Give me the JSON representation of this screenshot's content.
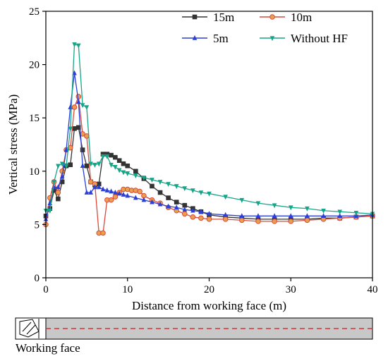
{
  "chart_data": {
    "type": "line",
    "xlabel": "Distance from working face (m)",
    "ylabel": "Vertical stress (MPa)",
    "xlim": [
      0,
      40
    ],
    "ylim": [
      0,
      25
    ],
    "xticks": [
      0,
      10,
      20,
      30,
      40
    ],
    "yticks": [
      0,
      5,
      10,
      15,
      20,
      25
    ],
    "grid": false,
    "legend_position": "top-right",
    "series": [
      {
        "name": "15m",
        "color": "#333333",
        "marker": "square",
        "x": [
          0,
          0.5,
          1,
          1.5,
          2,
          2.5,
          3,
          3.5,
          4,
          4.5,
          5,
          5.5,
          6,
          6.5,
          7,
          7.5,
          8,
          8.5,
          9,
          9.5,
          10,
          11,
          12,
          13,
          14,
          15,
          16,
          17,
          18,
          19,
          20,
          22,
          24,
          26,
          28,
          30,
          32,
          34,
          36,
          38,
          40
        ],
        "y": [
          5.8,
          6.5,
          8.2,
          7.4,
          9.0,
          10.5,
          10.6,
          14.0,
          14.1,
          12.0,
          10.5,
          9.0,
          8.7,
          8.8,
          11.6,
          11.6,
          11.5,
          11.3,
          11.0,
          10.7,
          10.5,
          10.0,
          9.3,
          8.6,
          8.0,
          7.5,
          7.1,
          6.8,
          6.5,
          6.2,
          5.9,
          5.7,
          5.6,
          5.5,
          5.5,
          5.5,
          5.5,
          5.6,
          5.6,
          5.7,
          5.8
        ]
      },
      {
        "name": "10m",
        "color": "#d94a3a",
        "marker": "circle",
        "x": [
          0,
          0.5,
          1,
          1.5,
          2,
          2.5,
          3,
          3.5,
          4,
          4.5,
          5,
          5.5,
          6,
          6.5,
          7,
          7.5,
          8,
          8.5,
          9,
          9.5,
          10,
          10.5,
          11,
          11.5,
          12,
          13,
          14,
          15,
          16,
          17,
          18,
          19,
          20,
          22,
          24,
          26,
          28,
          30,
          32,
          34,
          36,
          38,
          40
        ],
        "y": [
          5.0,
          7.5,
          9.0,
          8.0,
          10.0,
          12.0,
          12.2,
          16.0,
          17.0,
          13.5,
          13.3,
          9.0,
          8.8,
          4.2,
          4.2,
          7.3,
          7.3,
          7.6,
          8.0,
          8.3,
          8.3,
          8.2,
          8.2,
          8.1,
          7.7,
          7.3,
          7.0,
          6.6,
          6.3,
          6.0,
          5.7,
          5.6,
          5.5,
          5.5,
          5.4,
          5.3,
          5.3,
          5.3,
          5.4,
          5.5,
          5.6,
          5.7,
          5.8
        ]
      },
      {
        "name": "5m",
        "color": "#2b3fd6",
        "marker": "triangle-up",
        "x": [
          0,
          0.5,
          1,
          1.5,
          2,
          2.5,
          3,
          3.5,
          4,
          4.5,
          5,
          5.5,
          6,
          6.5,
          7,
          7.5,
          8,
          8.5,
          9,
          9.5,
          10,
          11,
          12,
          13,
          14,
          15,
          16,
          17,
          18,
          19,
          20,
          22,
          24,
          26,
          28,
          30,
          32,
          34,
          36,
          38,
          40
        ],
        "y": [
          5.5,
          7.0,
          8.5,
          8.5,
          9.5,
          12.0,
          16.0,
          19.2,
          16.5,
          10.5,
          8.0,
          8.0,
          8.5,
          8.5,
          8.3,
          8.2,
          8.1,
          8.0,
          7.9,
          7.8,
          7.7,
          7.5,
          7.3,
          7.1,
          6.9,
          6.7,
          6.6,
          6.4,
          6.3,
          6.2,
          6.0,
          5.9,
          5.8,
          5.8,
          5.8,
          5.8,
          5.8,
          5.8,
          5.8,
          5.8,
          5.9
        ]
      },
      {
        "name": "Without HF",
        "color": "#17a589",
        "marker": "triangle-down",
        "x": [
          0,
          0.5,
          1,
          1.5,
          2,
          2.5,
          3,
          3.5,
          4,
          4.5,
          5,
          5.5,
          6,
          6.5,
          7,
          7.5,
          8,
          8.5,
          9,
          9.5,
          10,
          11,
          12,
          13,
          14,
          15,
          16,
          17,
          18,
          19,
          20,
          22,
          24,
          26,
          28,
          30,
          32,
          34,
          36,
          38,
          40
        ],
        "y": [
          6.3,
          6.3,
          9.0,
          10.5,
          10.7,
          10.5,
          14.0,
          21.9,
          21.8,
          16.2,
          16.0,
          10.7,
          10.6,
          10.7,
          11.4,
          11.4,
          10.6,
          10.4,
          10.1,
          9.9,
          9.8,
          9.6,
          9.4,
          9.2,
          9.0,
          8.8,
          8.6,
          8.4,
          8.2,
          8.0,
          7.9,
          7.6,
          7.3,
          7.0,
          6.8,
          6.6,
          6.5,
          6.3,
          6.2,
          6.1,
          6.0
        ]
      }
    ]
  },
  "schematic": {
    "caption": "Working face",
    "panel_color": "#c8c8c8",
    "line_color": "#e03030"
  }
}
